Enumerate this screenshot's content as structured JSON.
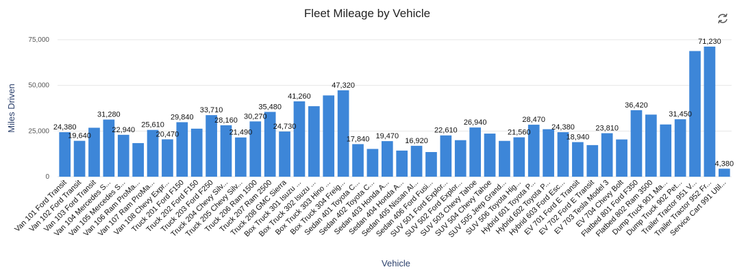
{
  "chart_data": {
    "type": "bar",
    "title": "Fleet Mileage by Vehicle",
    "xlabel": "Vehicle",
    "ylabel": "Miles Driven",
    "ylim": [
      0,
      75000
    ],
    "yticks": [
      0,
      25000,
      50000,
      75000
    ],
    "ytick_labels": [
      "0",
      "25,000",
      "50,000",
      "75,000"
    ],
    "grid": true,
    "bar_color": "#3d86d8",
    "categories": [
      "Van 101 Ford Transit",
      "Van 102 Ford Transit",
      "Van 103 Ford Transit",
      "Van 104 Mercedes S...",
      "Van 105 Mercedes S...",
      "Van 106 Ram ProMa...",
      "Van 107 Ram ProMa...",
      "Van 108 Chevy Expr...",
      "Truck 201 Ford F150",
      "Truck 202 Ford F150",
      "Truck 203 Ford F250",
      "Truck 204 Chevy Silv...",
      "Truck 205 Chevy Silv...",
      "Truck 206 Ram 1500",
      "Truck 207 Ram 2500",
      "Truck 208 GMC Sierra",
      "Box Truck 301 Isuzu ...",
      "Box Truck 302 Isuzu ...",
      "Box Truck 303 Hino ...",
      "Box Truck 304 Freig...",
      "Sedan 401 Toyota C...",
      "Sedan 402 Toyota C...",
      "Sedan 403 Honda A...",
      "Sedan 404 Honda A...",
      "Sedan 405 Nissan Al...",
      "Sedan 406 Ford Fusi...",
      "SUV 501 Ford Explor...",
      "SUV 502 Ford Explor...",
      "SUV 503 Chevy Tahoe",
      "SUV 504 Chevy Tahoe",
      "SUV 505 Jeep Grand...",
      "SUV 506 Toyota Hig...",
      "Hybrid 601 Toyota P...",
      "Hybrid 602 Toyota P...",
      "Hybrid 603 Ford Esc...",
      "EV 701 Ford E Transit",
      "EV 702 Ford E Transit",
      "EV 703 Tesla Model 3",
      "EV 704 Chevy Bolt",
      "Flatbed 801 Ford F350",
      "Flatbed 802 Ram 3500",
      "Dump Truck 901 Ma...",
      "Dump Truck 902 Pet...",
      "Trailer Tractor 951 V...",
      "Trailer Tractor 952 Fr...",
      "Service Cart 991 Util..."
    ],
    "values": [
      24380,
      19640,
      26800,
      31280,
      22940,
      18400,
      25610,
      20470,
      29840,
      26300,
      33710,
      28160,
      21490,
      30270,
      35480,
      24730,
      41260,
      38600,
      44500,
      47320,
      17840,
      15200,
      19470,
      14300,
      16920,
      13500,
      22610,
      20000,
      26940,
      23600,
      19600,
      21560,
      28470,
      26000,
      24380,
      18940,
      17300,
      23810,
      20400,
      36420,
      34000,
      28600,
      31450,
      68800,
      71230,
      4380
    ],
    "data_labels": [
      "24,380",
      "19,640",
      "",
      "31,280",
      "22,940",
      "",
      "25,610",
      "20,470",
      "29,840",
      "",
      "33,710",
      "28,160",
      "21,490",
      "30,270",
      "35,480",
      "24,730",
      "41,260",
      "",
      "",
      "47,320",
      "17,840",
      "",
      "19,470",
      "",
      "16,920",
      "",
      "22,610",
      "",
      "26,940",
      "",
      "",
      "21,560",
      "28,470",
      "",
      "24,380",
      "18,940",
      "",
      "23,810",
      "",
      "36,420",
      "",
      "",
      "31,450",
      "",
      "71,230",
      "4,380"
    ]
  }
}
